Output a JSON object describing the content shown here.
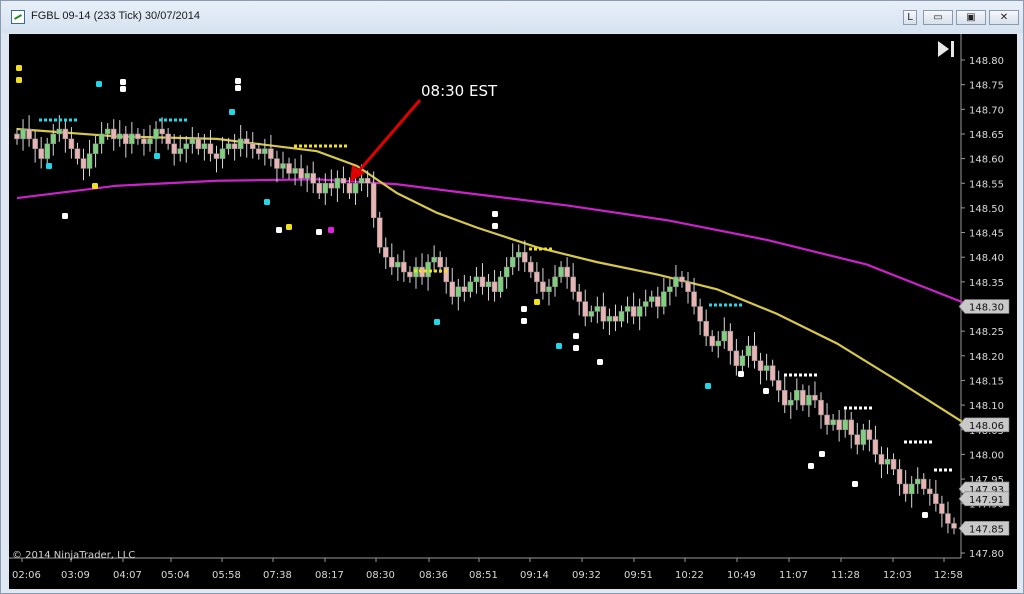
{
  "window": {
    "title": "FGBL 09-14 (233 Tick)  30/07/2014",
    "buttons": {
      "lock": "L",
      "minimize": "▭",
      "restore": "▣",
      "close": "✕"
    }
  },
  "copyright": "© 2014 NinjaTrader, LLC",
  "annotation": {
    "text": "08:30 EST",
    "color": "#e00000"
  },
  "chart_data": {
    "type": "candlestick",
    "title": "",
    "ylim": [
      147.79,
      148.83
    ],
    "y_ticks": [
      147.8,
      147.85,
      147.9,
      147.95,
      148.0,
      148.05,
      148.1,
      148.15,
      148.2,
      148.25,
      148.3,
      148.35,
      148.4,
      148.45,
      148.5,
      148.55,
      148.6,
      148.65,
      148.7,
      148.75,
      148.8
    ],
    "y_tick_labels": [
      "147.80",
      "147.85",
      "147.90",
      "147.95",
      "148.00",
      "148.05",
      "148.10",
      "148.15",
      "148.20",
      "148.25",
      "148.30",
      "148.35",
      "148.40",
      "148.45",
      "148.50",
      "148.55",
      "148.60",
      "148.65",
      "148.70",
      "148.75",
      "148.80"
    ],
    "x_tick_labels": [
      "02:06",
      "03:09",
      "04:07",
      "05:04",
      "05:58",
      "07:38",
      "08:17",
      "08:30",
      "08:36",
      "08:51",
      "09:14",
      "09:32",
      "09:51",
      "10:22",
      "10:49",
      "11:07",
      "11:28",
      "12:03",
      "12:58"
    ],
    "price_markers": [
      {
        "value": 148.3,
        "label": "148.30",
        "color": "#c9c9c9"
      },
      {
        "value": 148.06,
        "label": "148.06",
        "color": "#c9c9c9"
      },
      {
        "value": 147.93,
        "label": "147.93",
        "color": "#c9c9c9"
      },
      {
        "value": 147.91,
        "label": "147.91",
        "color": "#c9c9c9"
      },
      {
        "value": 147.85,
        "label": "147.85",
        "color": "#c9c9c9"
      }
    ],
    "colors": {
      "up": "#7fd07f",
      "down": "#e8b4b4",
      "wick": "#d8d8d8",
      "slow_ma": "#cc22cc",
      "fast_ma": "#d8c84a",
      "dots_cyan": "#22d8e8",
      "dots_yellow": "#f0e020",
      "dots_white": "#ffffff",
      "dots_magenta": "#e020e0"
    },
    "closes": [
      148.64,
      148.66,
      148.64,
      148.62,
      148.6,
      148.63,
      148.65,
      148.66,
      148.64,
      148.62,
      148.6,
      148.58,
      148.61,
      148.63,
      148.65,
      148.66,
      148.64,
      148.65,
      148.63,
      148.65,
      148.64,
      148.63,
      148.64,
      148.66,
      148.65,
      148.63,
      148.61,
      148.62,
      148.63,
      148.64,
      148.62,
      148.63,
      148.61,
      148.6,
      148.62,
      148.63,
      148.62,
      148.64,
      148.63,
      148.62,
      148.61,
      148.62,
      148.6,
      148.58,
      148.59,
      148.57,
      148.58,
      148.56,
      148.57,
      148.55,
      148.53,
      148.55,
      148.54,
      148.56,
      148.55,
      148.53,
      148.55,
      148.56,
      148.55,
      148.48,
      148.42,
      148.4,
      148.38,
      148.39,
      148.37,
      148.36,
      148.38,
      148.36,
      148.39,
      148.4,
      148.38,
      148.35,
      148.32,
      148.34,
      148.33,
      148.35,
      148.36,
      148.34,
      148.35,
      148.33,
      148.36,
      148.38,
      148.4,
      148.41,
      148.39,
      148.37,
      148.35,
      148.33,
      148.34,
      148.36,
      148.38,
      148.36,
      148.33,
      148.31,
      148.28,
      148.29,
      148.3,
      148.27,
      148.28,
      148.27,
      148.29,
      148.3,
      148.28,
      148.3,
      148.31,
      148.32,
      148.3,
      148.33,
      148.34,
      148.36,
      148.35,
      148.33,
      148.3,
      148.27,
      148.24,
      148.22,
      148.23,
      148.25,
      148.21,
      148.18,
      148.2,
      148.22,
      148.19,
      148.17,
      148.18,
      148.15,
      148.13,
      148.1,
      148.11,
      148.13,
      148.1,
      148.12,
      148.11,
      148.08,
      148.06,
      148.07,
      148.05,
      148.07,
      148.04,
      148.02,
      148.05,
      148.03,
      148.0,
      147.98,
      147.99,
      147.97,
      147.94,
      147.92,
      147.94,
      147.95,
      147.93,
      147.92,
      147.9,
      147.88,
      147.86,
      147.85
    ],
    "slow_ma": [
      [
        0,
        148.52
      ],
      [
        100,
        148.545
      ],
      [
        200,
        148.555
      ],
      [
        300,
        148.558
      ],
      [
        380,
        148.548
      ],
      [
        450,
        148.53
      ],
      [
        550,
        148.505
      ],
      [
        650,
        148.475
      ],
      [
        750,
        148.435
      ],
      [
        850,
        148.385
      ],
      [
        950,
        148.305
      ]
    ],
    "fast_ma": [
      [
        0,
        148.66
      ],
      [
        100,
        148.645
      ],
      [
        200,
        148.64
      ],
      [
        300,
        148.615
      ],
      [
        340,
        148.585
      ],
      [
        380,
        148.53
      ],
      [
        420,
        148.49
      ],
      [
        460,
        148.46
      ],
      [
        520,
        148.42
      ],
      [
        580,
        148.39
      ],
      [
        640,
        148.365
      ],
      [
        700,
        148.335
      ],
      [
        760,
        148.285
      ],
      [
        820,
        148.225
      ],
      [
        880,
        148.15
      ],
      [
        950,
        148.06
      ]
    ]
  }
}
